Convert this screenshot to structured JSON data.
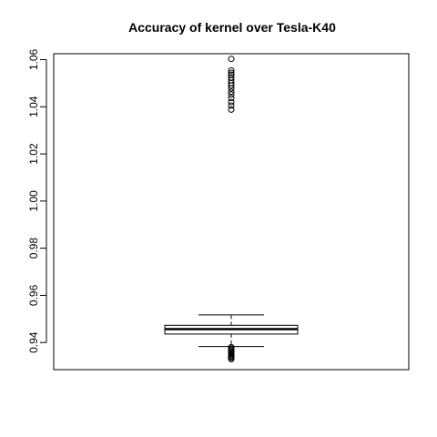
{
  "chart_data": {
    "type": "boxplot",
    "title": "Accuracy of kernel over Tesla-K40",
    "xlabel": "",
    "ylabel": "",
    "ylim": [
      0.9285,
      1.0625
    ],
    "yticks": [
      0.94,
      0.96,
      0.98,
      1.0,
      1.02,
      1.04,
      1.06
    ],
    "ytick_labels": [
      "0.94",
      "0.96",
      "0.98",
      "1.00",
      "1.02",
      "1.04",
      "1.06"
    ],
    "box": {
      "whisker_low": 0.9383,
      "q1": 0.9436,
      "median": 0.9457,
      "q3": 0.9473,
      "whisker_high": 0.9517
    },
    "outliers_high": [
      1.0388,
      1.0405,
      1.042,
      1.0437,
      1.0452,
      1.0464,
      1.0478,
      1.049,
      1.05,
      1.0512,
      1.0524,
      1.0536,
      1.0544,
      1.0554,
      1.0603
    ],
    "outliers_low": [
      0.933,
      0.9335,
      0.934,
      0.9345,
      0.935,
      0.9355,
      0.936,
      0.9365,
      0.937,
      0.9375,
      0.938
    ],
    "grid": false,
    "legend": false
  }
}
